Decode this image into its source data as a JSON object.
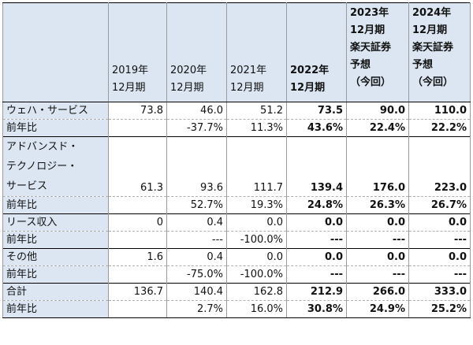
{
  "header": {
    "corner": "",
    "col_2019": [
      "2019年",
      "12月期"
    ],
    "col_2020": [
      "2020年",
      "12月期"
    ],
    "col_2021": [
      "2021年",
      "12月期"
    ],
    "col_2022": [
      "2022年",
      "12月期"
    ],
    "col_2023": [
      "2023年",
      "12月期",
      "楽天証券",
      "予想",
      "（今回）"
    ],
    "col_2024": [
      "2024年",
      "12月期",
      "楽天証券",
      "予想",
      "（今回）"
    ]
  },
  "rows": [
    {
      "label": "ウェハ・サービス",
      "values": [
        "73.8",
        "46.0",
        "51.2",
        "73.5",
        "90.0",
        "110.0"
      ]
    },
    {
      "label": "前年比",
      "values": [
        "",
        "-37.7%",
        "11.3%",
        "43.6%",
        "22.4%",
        "22.2%"
      ]
    },
    {
      "label_lines": [
        "アドバンスド・",
        "テクノロジー・",
        "サービス"
      ],
      "values": [
        "61.3",
        "93.6",
        "111.7",
        "139.4",
        "176.0",
        "223.0"
      ]
    },
    {
      "label": "前年比",
      "values": [
        "",
        "52.7%",
        "19.3%",
        "24.8%",
        "26.3%",
        "26.7%"
      ]
    },
    {
      "label": "リース収入",
      "values": [
        "0",
        "0.4",
        "0.0",
        "0.0",
        "0.0",
        "0.0"
      ]
    },
    {
      "label": "前年比",
      "values": [
        "",
        "---",
        "-100.0%",
        "---",
        "---",
        "---"
      ]
    },
    {
      "label": "その他",
      "values": [
        "1.6",
        "0.4",
        "0.0",
        "0.0",
        "0.0",
        "0.0"
      ]
    },
    {
      "label": "前年比",
      "values": [
        "",
        "-75.0%",
        "-100.0%",
        "---",
        "---",
        "---"
      ]
    },
    {
      "label": "合計",
      "values": [
        "136.7",
        "140.4",
        "162.8",
        "212.9",
        "266.0",
        "333.0"
      ]
    },
    {
      "label": "前年比",
      "values": [
        "",
        "2.7%",
        "16.0%",
        "30.8%",
        "24.9%",
        "25.2%"
      ]
    }
  ]
}
